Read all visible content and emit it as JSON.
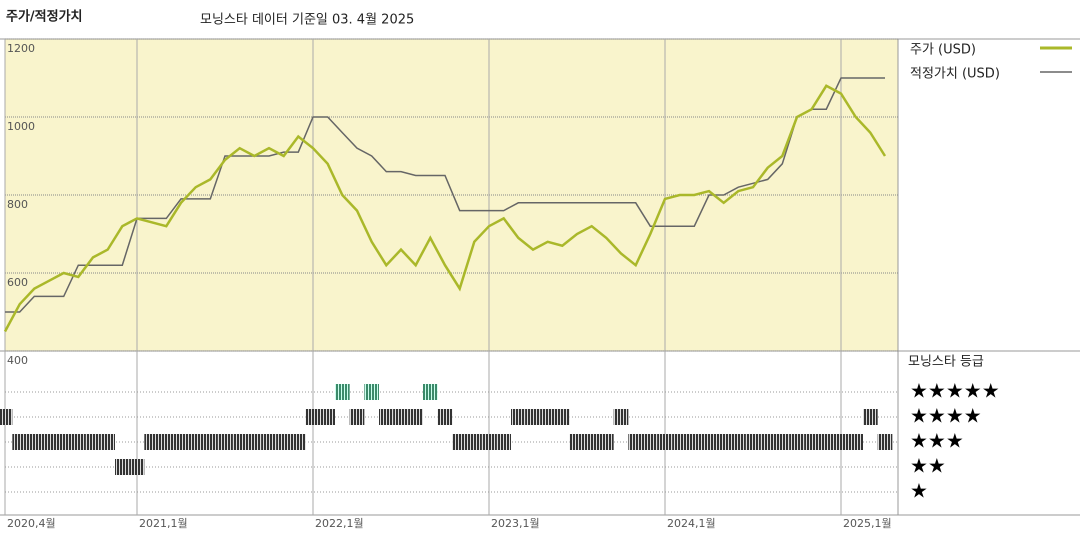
{
  "chart_data": {
    "type": "line",
    "title": "주가/적정가치",
    "subtitle": "모닝스타 데이터 기준일 03. 4월 2025",
    "x": [
      "2020-04",
      "2020-05",
      "2020-06",
      "2020-07",
      "2020-08",
      "2020-09",
      "2020-10",
      "2020-11",
      "2020-12",
      "2021-01",
      "2021-02",
      "2021-03",
      "2021-04",
      "2021-05",
      "2021-06",
      "2021-07",
      "2021-08",
      "2021-09",
      "2021-10",
      "2021-11",
      "2021-12",
      "2022-01",
      "2022-02",
      "2022-03",
      "2022-04",
      "2022-05",
      "2022-06",
      "2022-07",
      "2022-08",
      "2022-09",
      "2022-10",
      "2022-11",
      "2022-12",
      "2023-01",
      "2023-02",
      "2023-03",
      "2023-04",
      "2023-05",
      "2023-06",
      "2023-07",
      "2023-08",
      "2023-09",
      "2023-10",
      "2023-11",
      "2023-12",
      "2024-01",
      "2024-02",
      "2024-03",
      "2024-04",
      "2024-05",
      "2024-06",
      "2024-07",
      "2024-08",
      "2024-09",
      "2024-10",
      "2024-11",
      "2024-12",
      "2025-01",
      "2025-02",
      "2025-03",
      "2025-04"
    ],
    "series": [
      {
        "name": "주가 (USD)",
        "color": "#aab82a",
        "values": [
          450,
          520,
          560,
          580,
          600,
          590,
          640,
          660,
          720,
          740,
          730,
          720,
          780,
          820,
          840,
          890,
          920,
          900,
          920,
          900,
          950,
          920,
          880,
          800,
          760,
          680,
          620,
          660,
          620,
          690,
          620,
          560,
          680,
          720,
          740,
          690,
          660,
          680,
          670,
          700,
          720,
          690,
          650,
          620,
          700,
          790,
          800,
          800,
          810,
          780,
          810,
          820,
          870,
          900,
          1000,
          1020,
          1080,
          1060,
          1000,
          960,
          900
        ]
      },
      {
        "name": "적정가치 (USD)",
        "color": "#666666",
        "values": [
          500,
          500,
          540,
          540,
          540,
          620,
          620,
          620,
          620,
          740,
          740,
          740,
          790,
          790,
          790,
          900,
          900,
          900,
          900,
          910,
          910,
          1000,
          1000,
          960,
          920,
          900,
          860,
          860,
          850,
          850,
          850,
          760,
          760,
          760,
          760,
          780,
          780,
          780,
          780,
          780,
          780,
          780,
          780,
          780,
          720,
          720,
          720,
          720,
          800,
          800,
          820,
          830,
          840,
          880,
          1000,
          1020,
          1020,
          1100,
          1100,
          1100,
          1100
        ]
      }
    ],
    "xlim": [
      "2020-04",
      "2025-04"
    ],
    "xticks": [
      {
        "value": "2020-04",
        "label": "2020,4월"
      },
      {
        "value": "2021-01",
        "label": "2021,1월"
      },
      {
        "value": "2022-01",
        "label": "2022,1월"
      },
      {
        "value": "2023-01",
        "label": "2023,1월"
      },
      {
        "value": "2024-01",
        "label": "2024,1월"
      },
      {
        "value": "2025-01",
        "label": "2025,1월"
      }
    ],
    "ylim": [
      400,
      1200
    ],
    "yticks": [
      400,
      600,
      800,
      1000,
      1200
    ],
    "ratings": {
      "title": "모닝스타 등급",
      "rating_labels": [
        "★★★★★",
        "★★★★",
        "★★★",
        "★★",
        "★"
      ],
      "colors": {
        "5": "#3c8a6a",
        "other": "#333333"
      },
      "values": [
        4,
        3,
        3,
        3,
        3,
        3,
        3,
        3,
        2,
        2,
        3,
        3,
        3,
        3,
        3,
        3,
        3,
        3,
        3,
        3,
        3,
        4,
        4,
        5,
        4,
        5,
        4,
        4,
        4,
        5,
        4,
        3,
        3,
        3,
        3,
        4,
        4,
        4,
        4,
        3,
        3,
        3,
        4,
        3,
        3,
        3,
        3,
        3,
        3,
        3,
        3,
        3,
        3,
        3,
        3,
        3,
        3,
        3,
        3,
        4,
        3
      ]
    }
  }
}
